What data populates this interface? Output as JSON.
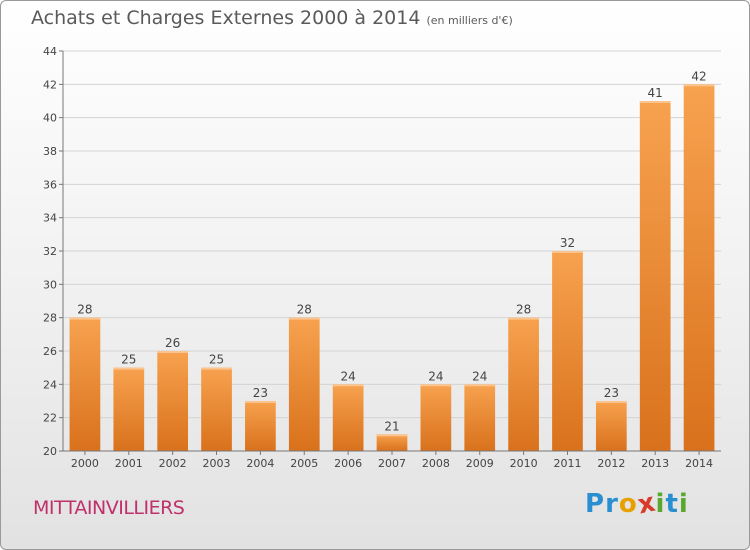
{
  "header": {
    "title": "Achats et Charges Externes 2000 à 2014",
    "subtitle": "(en milliers d'€)"
  },
  "footer": {
    "city": "MITTAINVILLIERS",
    "logo_letters": [
      "P",
      "r",
      "o",
      "x",
      "i",
      "t",
      "i"
    ],
    "logo_colors": [
      "#2a8fd0",
      "#2a8fd0",
      "#e8a000",
      "#d83a2a",
      "#5aa830",
      "#2a8fd0",
      "#5aa830"
    ]
  },
  "chart_data": {
    "type": "bar",
    "title": "Achats et Charges Externes 2000 à 2014",
    "subtitle": "(en milliers d'€)",
    "categories": [
      "2000",
      "2001",
      "2002",
      "2003",
      "2004",
      "2005",
      "2006",
      "2007",
      "2008",
      "2009",
      "2010",
      "2011",
      "2012",
      "2013",
      "2014"
    ],
    "values": [
      28,
      25,
      26,
      25,
      23,
      28,
      24,
      21,
      24,
      24,
      28,
      32,
      23,
      41,
      42
    ],
    "ylim": [
      20,
      44
    ],
    "yticks": [
      20,
      22,
      24,
      26,
      28,
      30,
      32,
      34,
      36,
      38,
      40,
      42,
      44
    ],
    "grid": true,
    "bar_color_light": "#f7a24f",
    "bar_color_dark": "#d9711c"
  }
}
